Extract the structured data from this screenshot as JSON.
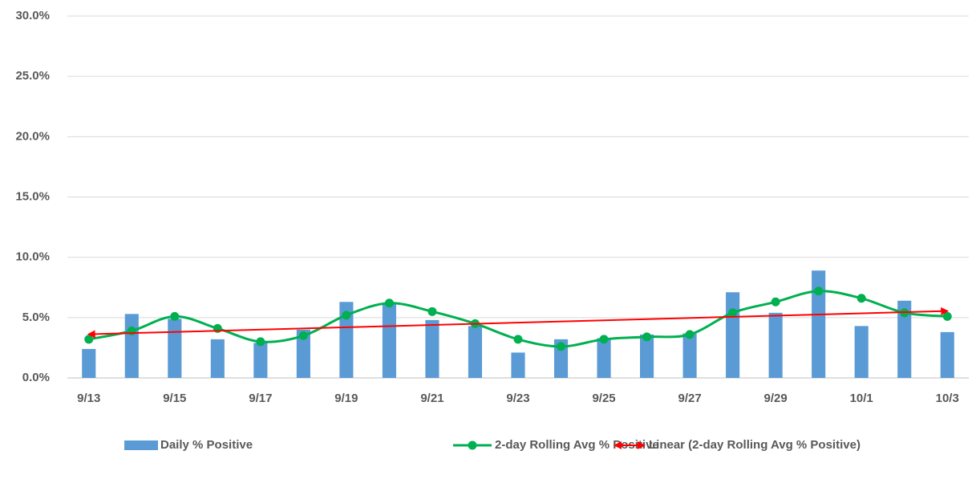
{
  "chart_data": {
    "type": "bar",
    "categories": [
      "9/13",
      null,
      "9/15",
      null,
      "9/17",
      null,
      "9/19",
      null,
      "9/21",
      null,
      "9/23",
      null,
      "9/25",
      null,
      "9/27",
      null,
      "9/29",
      null,
      "10/1",
      null,
      "10/3"
    ],
    "series": [
      {
        "name": "Daily % Positive",
        "type": "bar",
        "color": "#5b9bd5",
        "values": [
          2.4,
          5.3,
          4.9,
          3.2,
          2.9,
          4.0,
          6.3,
          6.2,
          4.8,
          4.3,
          2.1,
          3.2,
          3.3,
          3.6,
          3.7,
          7.1,
          5.4,
          8.9,
          4.3,
          6.4,
          3.8
        ]
      },
      {
        "name": "2-day Rolling Avg % Positive",
        "type": "line",
        "smooth": true,
        "color": "#00b050",
        "values": [
          3.2,
          3.9,
          5.1,
          4.1,
          3.0,
          3.5,
          5.2,
          6.2,
          5.5,
          4.5,
          3.2,
          2.6,
          3.2,
          3.4,
          3.6,
          5.4,
          6.3,
          7.2,
          6.6,
          5.4,
          5.1
        ]
      },
      {
        "name": "Linear (2-day Rolling Avg % Positive)",
        "type": "trendline",
        "of": 1,
        "color": "#ff0000"
      }
    ],
    "ylim": [
      0,
      30
    ],
    "yticks": [
      {
        "value": 0,
        "label": "0.0%"
      },
      {
        "value": 5,
        "label": "5.0%"
      },
      {
        "value": 10,
        "label": "10.0%"
      },
      {
        "value": 15,
        "label": "15.0%"
      },
      {
        "value": 20,
        "label": "20.0%"
      },
      {
        "value": 25,
        "label": "25.0%"
      },
      {
        "value": 30,
        "label": "30.0%"
      }
    ],
    "grid": true,
    "legend": "bottom"
  }
}
